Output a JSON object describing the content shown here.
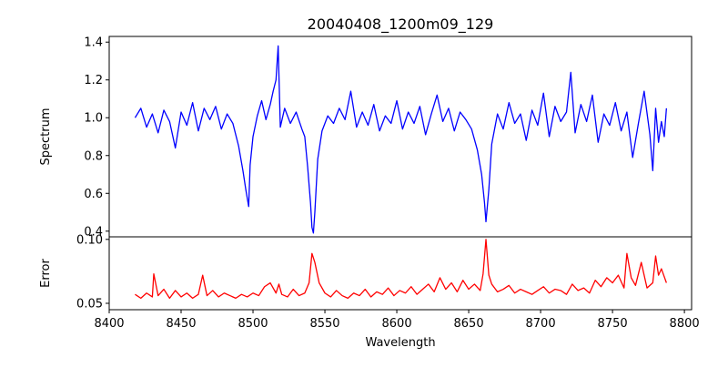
{
  "chart_data": {
    "type": "line",
    "title": "20040408_1200m09_129",
    "xlabel": "Wavelength",
    "xlim": [
      8400,
      8805
    ],
    "x_ticks": [
      "8400",
      "8450",
      "8500",
      "8550",
      "8600",
      "8650",
      "8700",
      "8750",
      "8800"
    ],
    "x_tick_values": [
      8400,
      8450,
      8500,
      8550,
      8600,
      8650,
      8700,
      8750,
      8800
    ],
    "panels": [
      {
        "name": "spectrum",
        "ylabel": "Spectrum",
        "ylim": [
          0.37,
          1.43
        ],
        "y_ticks": [
          "0.4",
          "0.6",
          "0.8",
          "1.0",
          "1.2",
          "1.4"
        ],
        "y_tick_values": [
          0.4,
          0.6,
          0.8,
          1.0,
          1.2,
          1.4
        ],
        "color": "#0000ff",
        "x": [
          8418,
          8422,
          8426,
          8430,
          8434,
          8438,
          8442,
          8446,
          8450,
          8454,
          8458,
          8462,
          8466,
          8470,
          8474,
          8478,
          8482,
          8486,
          8490,
          8493,
          8495,
          8497,
          8498,
          8500,
          8503,
          8506,
          8509,
          8512,
          8514,
          8516,
          8517.5,
          8519,
          8522,
          8526,
          8530,
          8534,
          8536,
          8538,
          8540,
          8541,
          8542,
          8543,
          8545,
          8548,
          8552,
          8556,
          8560,
          8564,
          8568,
          8572,
          8576,
          8580,
          8584,
          8588,
          8592,
          8596,
          8600,
          8604,
          8608,
          8612,
          8616,
          8620,
          8624,
          8628,
          8632,
          8636,
          8640,
          8644,
          8648,
          8652,
          8656,
          8659,
          8661,
          8662,
          8664,
          8666,
          8670,
          8674,
          8678,
          8682,
          8686,
          8690,
          8694,
          8698,
          8702,
          8706,
          8710,
          8714,
          8718,
          8721,
          8724,
          8728,
          8732,
          8736,
          8740,
          8744,
          8748,
          8752,
          8756,
          8760,
          8764,
          8768,
          8772,
          8776,
          8778,
          8780,
          8782,
          8784,
          8786,
          8787.5
        ],
        "y": [
          1.0,
          1.05,
          0.95,
          1.02,
          0.92,
          1.04,
          0.98,
          0.84,
          1.03,
          0.96,
          1.08,
          0.93,
          1.05,
          0.99,
          1.06,
          0.94,
          1.02,
          0.97,
          0.85,
          0.72,
          0.62,
          0.53,
          0.75,
          0.9,
          1.01,
          1.09,
          0.99,
          1.07,
          1.14,
          1.2,
          1.38,
          0.95,
          1.05,
          0.97,
          1.03,
          0.94,
          0.9,
          0.74,
          0.55,
          0.42,
          0.39,
          0.5,
          0.78,
          0.93,
          1.01,
          0.97,
          1.05,
          0.99,
          1.14,
          0.95,
          1.03,
          0.96,
          1.07,
          0.93,
          1.01,
          0.97,
          1.09,
          0.94,
          1.03,
          0.97,
          1.06,
          0.91,
          1.02,
          1.12,
          0.98,
          1.05,
          0.93,
          1.03,
          0.99,
          0.94,
          0.83,
          0.7,
          0.55,
          0.45,
          0.62,
          0.86,
          1.02,
          0.94,
          1.08,
          0.97,
          1.02,
          0.88,
          1.04,
          0.96,
          1.13,
          0.9,
          1.06,
          0.98,
          1.03,
          1.24,
          0.92,
          1.07,
          0.98,
          1.12,
          0.87,
          1.02,
          0.96,
          1.08,
          0.93,
          1.03,
          0.79,
          0.97,
          1.14,
          0.91,
          0.72,
          1.05,
          0.87,
          0.98,
          0.9,
          1.05
        ]
      },
      {
        "name": "error",
        "ylabel": "Error",
        "ylim": [
          0.045,
          0.102
        ],
        "y_ticks": [
          "0.05",
          "0.10"
        ],
        "y_tick_values": [
          0.05,
          0.1
        ],
        "color": "#ff0000",
        "x": [
          8418,
          8422,
          8426,
          8430,
          8431,
          8434,
          8438,
          8442,
          8446,
          8450,
          8454,
          8458,
          8462,
          8465,
          8468,
          8472,
          8476,
          8480,
          8484,
          8488,
          8492,
          8496,
          8500,
          8504,
          8508,
          8512,
          8516,
          8518,
          8520,
          8524,
          8528,
          8532,
          8536,
          8539,
          8541,
          8543,
          8546,
          8550,
          8554,
          8558,
          8562,
          8566,
          8570,
          8574,
          8578,
          8582,
          8586,
          8590,
          8594,
          8598,
          8602,
          8606,
          8610,
          8614,
          8618,
          8622,
          8626,
          8630,
          8634,
          8638,
          8642,
          8646,
          8650,
          8654,
          8658,
          8660,
          8662,
          8664,
          8666,
          8670,
          8674,
          8678,
          8682,
          8686,
          8690,
          8694,
          8698,
          8702,
          8706,
          8710,
          8714,
          8718,
          8722,
          8726,
          8730,
          8734,
          8738,
          8742,
          8746,
          8750,
          8754,
          8758,
          8760,
          8763,
          8766,
          8770,
          8774,
          8778,
          8780,
          8782,
          8784,
          8787.5
        ],
        "y": [
          0.057,
          0.054,
          0.058,
          0.055,
          0.073,
          0.056,
          0.061,
          0.054,
          0.06,
          0.055,
          0.058,
          0.054,
          0.057,
          0.072,
          0.056,
          0.06,
          0.055,
          0.058,
          0.056,
          0.054,
          0.057,
          0.055,
          0.058,
          0.056,
          0.063,
          0.066,
          0.058,
          0.065,
          0.057,
          0.055,
          0.061,
          0.056,
          0.058,
          0.066,
          0.089,
          0.082,
          0.066,
          0.058,
          0.055,
          0.06,
          0.056,
          0.054,
          0.058,
          0.056,
          0.061,
          0.055,
          0.059,
          0.057,
          0.062,
          0.056,
          0.06,
          0.058,
          0.063,
          0.057,
          0.061,
          0.065,
          0.059,
          0.07,
          0.061,
          0.066,
          0.059,
          0.068,
          0.061,
          0.065,
          0.06,
          0.073,
          0.1,
          0.072,
          0.065,
          0.059,
          0.061,
          0.064,
          0.058,
          0.061,
          0.059,
          0.057,
          0.06,
          0.063,
          0.058,
          0.061,
          0.06,
          0.057,
          0.065,
          0.06,
          0.062,
          0.058,
          0.068,
          0.063,
          0.07,
          0.066,
          0.072,
          0.062,
          0.089,
          0.07,
          0.064,
          0.082,
          0.062,
          0.066,
          0.087,
          0.072,
          0.077,
          0.066
        ]
      }
    ]
  }
}
